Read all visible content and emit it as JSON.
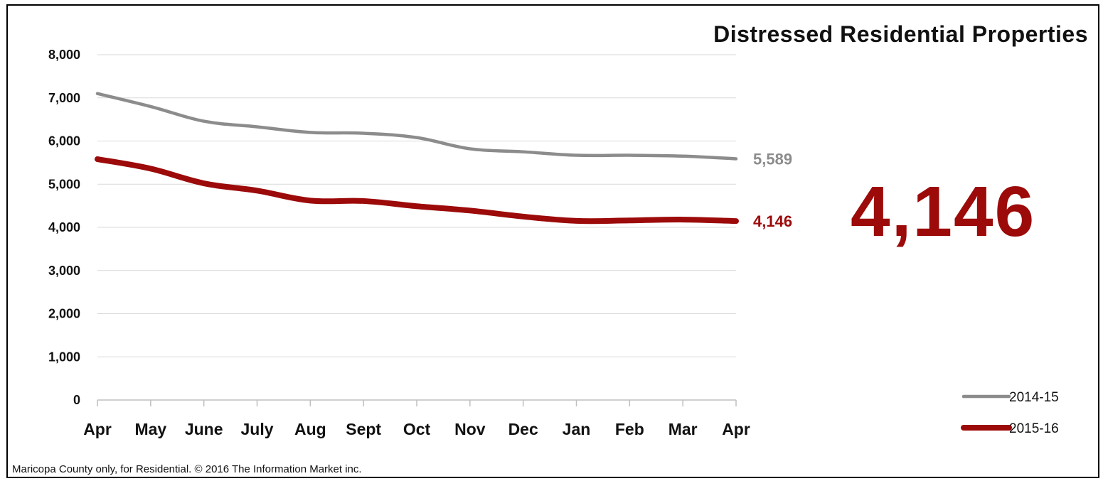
{
  "chart_data": {
    "type": "line",
    "title": "Distressed Residential Properties",
    "categories": [
      "Apr",
      "May",
      "June",
      "July",
      "Aug",
      "Sept",
      "Oct",
      "Nov",
      "Dec",
      "Jan",
      "Feb",
      "Mar",
      "Apr"
    ],
    "series": [
      {
        "name": "2014-15",
        "color": "#8c8c8c",
        "values": [
          7100,
          6800,
          6460,
          6330,
          6200,
          6180,
          6080,
          5820,
          5750,
          5670,
          5670,
          5650,
          5589
        ],
        "end_label": "5,589"
      },
      {
        "name": "2015-16",
        "color": "#9c0a0a",
        "values": [
          5580,
          5360,
          5020,
          4850,
          4620,
          4610,
          4490,
          4390,
          4250,
          4150,
          4160,
          4180,
          4146
        ],
        "end_label": "4,146"
      }
    ],
    "y_ticks": [
      "0",
      "1,000",
      "2,000",
      "3,000",
      "4,000",
      "5,000",
      "6,000",
      "7,000",
      "8,000"
    ],
    "ylim": [
      0,
      8000
    ],
    "grid": true,
    "legend": "bottom-right"
  },
  "callout": {
    "value": "4,146",
    "color": "#9c0a0a"
  },
  "footnote": "Maricopa County only, for Residential. © 2016 The Information Market inc."
}
